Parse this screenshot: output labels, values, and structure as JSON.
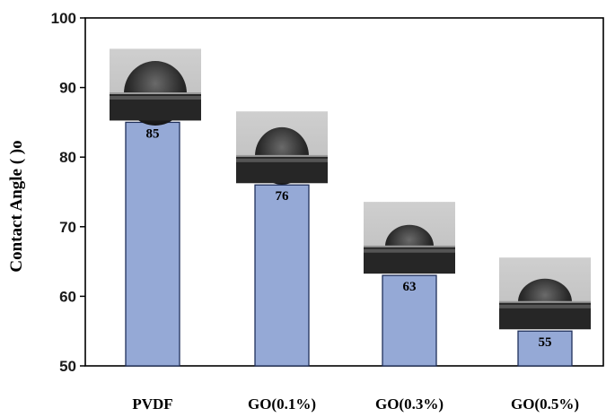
{
  "chart_data": {
    "type": "bar",
    "categories": [
      "PVDF",
      "GO(0.1%)",
      "GO(0.3%)",
      "GO(0.5%)"
    ],
    "values": [
      85,
      76,
      63,
      55
    ],
    "data_labels": [
      "85",
      "76",
      "63",
      "55"
    ],
    "ylabel": "Contact Angle ( )o",
    "xlabel": "",
    "title": "",
    "ylim": [
      50,
      100
    ],
    "yticks": [
      50,
      60,
      70,
      80,
      90,
      100
    ],
    "grid": false,
    "legend": "none",
    "bar_color": "#95a9d6",
    "bar_edge_color": "#1f2f5a",
    "annotations": "droplet contact-angle photograph above each bar"
  }
}
